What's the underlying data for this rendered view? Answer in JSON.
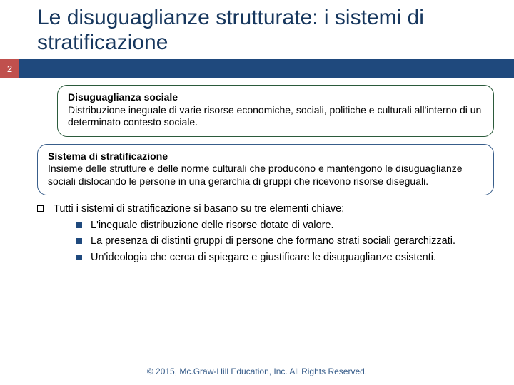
{
  "colors": {
    "title_text": "#17375e",
    "band_red": "#c0504d",
    "band_blue": "#1f497d",
    "box1_border": "#2b5a3b",
    "box2_border": "#385d8a",
    "bullet_fill": "#1f497d",
    "footer_text": "#385d8a"
  },
  "slide_number": "2",
  "title": "Le disuguaglianze strutturate: i sistemi di stratificazione",
  "box1": {
    "heading": "Disuguaglianza sociale",
    "body": "Distribuzione ineguale di varie risorse economiche, sociali, politiche e culturali all'interno di un determinato contesto sociale."
  },
  "box2": {
    "heading": "Sistema di stratificazione",
    "body": "Insieme delle strutture e delle norme culturali che producono e mantengono le disuguaglianze sociali dislocando le persone in una gerarchia di gruppi che ricevono risorse diseguali."
  },
  "list_intro": "Tutti i sistemi di stratificazione si basano su tre elementi chiave:",
  "items": [
    "L'ineguale distribuzione delle risorse dotate di valore.",
    "La presenza di distinti gruppi di persone che formano strati sociali gerarchizzati.",
    "Un'ideologia che cerca di spiegare e giustificare le disuguaglianze esistenti."
  ],
  "footer": "© 2015, Mc.Graw-Hill Education, Inc. All Rights Reserved."
}
